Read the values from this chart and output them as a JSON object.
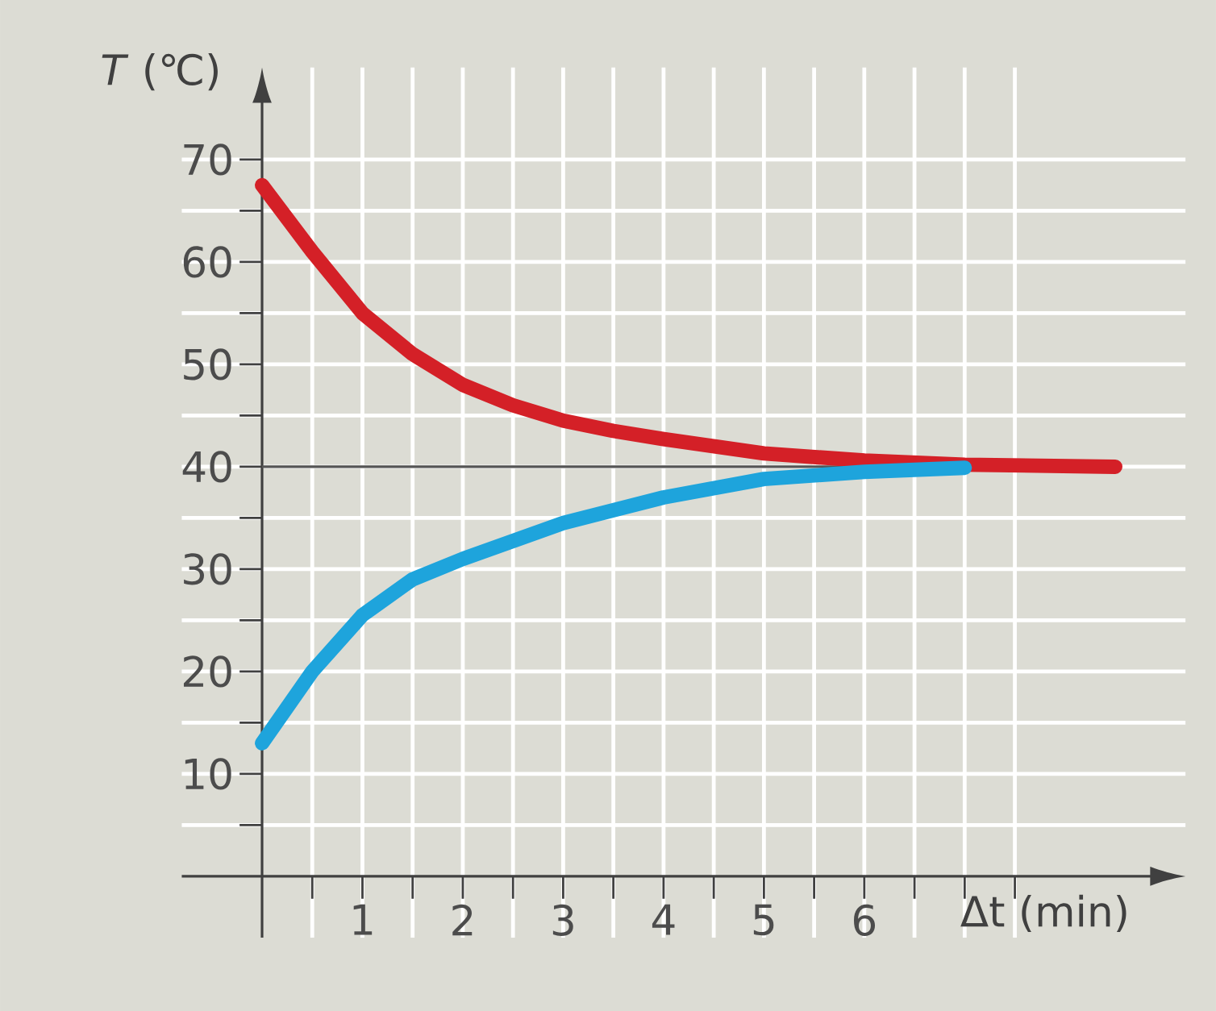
{
  "chart_data": {
    "type": "line",
    "xlabel": "Δt (min)",
    "ylabel": "*T* (℃)",
    "xlim": [
      -0.8,
      9.2
    ],
    "ylim": [
      -6,
      79
    ],
    "xticks": [
      {
        "value": 0.5,
        "label": null
      },
      1,
      {
        "value": 1.5,
        "label": null
      },
      2,
      {
        "value": 2.5,
        "label": null
      },
      3,
      {
        "value": 3.5,
        "label": null
      },
      4,
      {
        "value": 4.5,
        "label": null
      },
      5,
      {
        "value": 5.5,
        "label": null
      },
      6,
      {
        "value": 6.5,
        "label": null
      },
      {
        "value": 7,
        "label": null
      },
      {
        "value": 7.5,
        "label": null
      }
    ],
    "yticks": [
      {
        "value": 5,
        "label": null
      },
      10,
      {
        "value": 15,
        "label": null
      },
      20,
      {
        "value": 25,
        "label": null
      },
      30,
      {
        "value": 35,
        "label": null
      },
      40,
      {
        "value": 45,
        "label": null
      },
      50,
      {
        "value": 55,
        "label": null
      },
      60,
      {
        "value": 65,
        "label": null
      },
      70
    ],
    "grid": true,
    "marker": "none",
    "line_style": "solid",
    "ref_lines": [
      {
        "axis": "y",
        "value": 40,
        "color": "#555555"
      }
    ],
    "series": [
      {
        "color": "#d42027",
        "x": [
          0,
          0.5,
          1,
          1.5,
          2,
          2.5,
          3,
          3.5,
          4,
          5,
          6,
          7,
          8.5
        ],
        "values": [
          67.5,
          61,
          55,
          51,
          48,
          46,
          44.5,
          43.5,
          42.7,
          41.3,
          40.6,
          40.2,
          40
        ]
      },
      {
        "color": "#1ea4dc",
        "x": [
          0,
          0.5,
          1,
          1.5,
          2,
          3,
          4,
          5,
          6,
          7
        ],
        "values": [
          13,
          20,
          25.5,
          29,
          31,
          34.5,
          37,
          38.8,
          39.5,
          39.9
        ]
      }
    ]
  }
}
